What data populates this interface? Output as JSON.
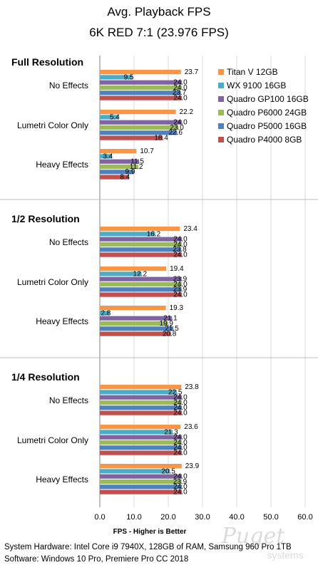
{
  "chart_data": {
    "type": "bar",
    "orientation": "horizontal",
    "title": "Avg. Playback FPS",
    "subtitle": "6K RED 7:1 (23.976 FPS)",
    "xlabel": "FPS - Higher is Better",
    "xlim": [
      0,
      60
    ],
    "xticks": [
      "0.0",
      "10.0",
      "20.0",
      "30.0",
      "40.0",
      "50.0",
      "60.0"
    ],
    "grid": true,
    "legend_position": "top-right",
    "series": [
      {
        "name": "Titan V 12GB",
        "color": "#F79646"
      },
      {
        "name": "WX 9100 16GB",
        "color": "#4BACC6"
      },
      {
        "name": "Quadro GP100 16GB",
        "color": "#8064A2"
      },
      {
        "name": "Quadro P6000 24GB",
        "color": "#9BBB59"
      },
      {
        "name": "Quadro P5000 16GB",
        "color": "#4F81BD"
      },
      {
        "name": "Quadro P4000 8GB",
        "color": "#C0504D"
      }
    ],
    "groups": [
      {
        "name": "Full Resolution",
        "categories": [
          {
            "label": "No Effects",
            "values": [
              23.7,
              9.5,
              24.0,
              24.0,
              23.7,
              24.0
            ],
            "labels": [
              "23.7",
              "9.5",
              "24.0",
              "24.0",
              "23.7",
              "24.0"
            ]
          },
          {
            "label": "Lumetri Color Only",
            "values": [
              22.2,
              5.4,
              24.0,
              23.0,
              22.6,
              18.4
            ],
            "labels": [
              "22.2",
              "5.4",
              "24.0",
              "23.0",
              "22.6",
              "18.4"
            ]
          },
          {
            "label": "Heavy Effects",
            "values": [
              10.7,
              3.4,
              11.5,
              11.2,
              9.9,
              8.4
            ],
            "labels": [
              "10.7",
              "3.4",
              "11.5",
              "11.2",
              "9.9",
              "8.4"
            ]
          }
        ]
      },
      {
        "name": "1/2 Resolution",
        "categories": [
          {
            "label": "No Effects",
            "values": [
              23.4,
              16.2,
              24.0,
              24.0,
              23.8,
              24.0
            ],
            "labels": [
              "23.4",
              "16.2",
              "24.0",
              "24.0",
              "23.8",
              "24.0"
            ]
          },
          {
            "label": "Lumetri Color Only",
            "values": [
              19.4,
              12.2,
              23.9,
              24.0,
              23.9,
              24.0
            ],
            "labels": [
              "19.4",
              "12.2",
              "23.9",
              "24.0",
              "23.9",
              "24.0"
            ]
          },
          {
            "label": "Heavy Effects",
            "values": [
              19.3,
              2.8,
              21.1,
              19.9,
              21.5,
              20.8
            ],
            "labels": [
              "19.3",
              "2.8",
              "21.1",
              "19.9",
              "21.5",
              "20.8"
            ]
          }
        ]
      },
      {
        "name": "1/4 Resolution",
        "categories": [
          {
            "label": "No Effects",
            "values": [
              23.8,
              22.5,
              24.0,
              24.0,
              24.0,
              24.0
            ],
            "labels": [
              "23.8",
              "22.5",
              "24.0",
              "24.0",
              "24.0",
              "24.0"
            ]
          },
          {
            "label": "Lumetri Color Only",
            "values": [
              23.6,
              21.3,
              24.0,
              24.0,
              24.0,
              24.0
            ],
            "labels": [
              "23.6",
              "21.3",
              "24.0",
              "24.0",
              "24.0",
              "24.0"
            ]
          },
          {
            "label": "Heavy Effects",
            "values": [
              23.9,
              20.5,
              24.0,
              23.9,
              24.0,
              24.0
            ],
            "labels": [
              "23.9",
              "20.5",
              "24.0",
              "23.9",
              "24.0",
              "24.0"
            ]
          }
        ]
      }
    ]
  },
  "footer": {
    "line1": "System Hardware: Intel Core i9 7940X,  128GB of RAM, Samsung 960 Pro 1TB",
    "line2": "Software: Windows 10 Pro, Premiere Pro CC 2018"
  },
  "watermark": {
    "brand": "Puget",
    "sub": "systems"
  }
}
